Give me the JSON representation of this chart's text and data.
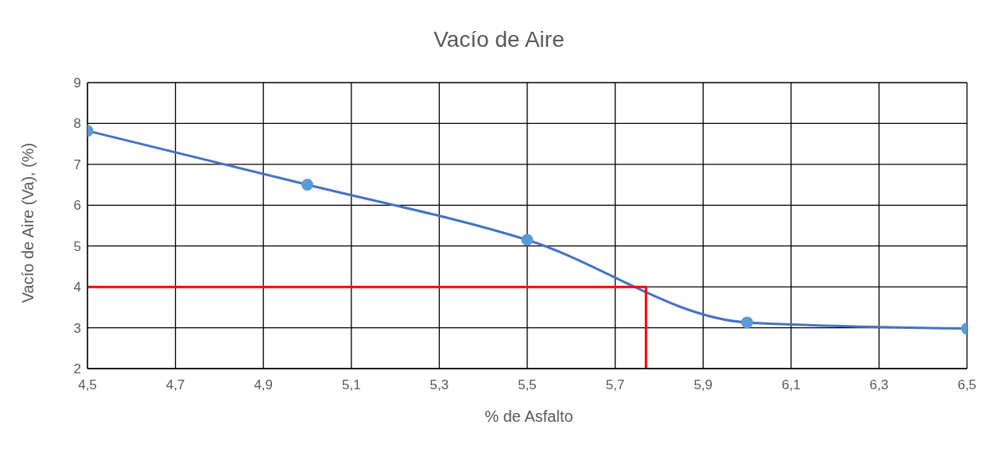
{
  "chart_data": {
    "type": "line",
    "title": "Vacío de Aire",
    "xlabel": "% de Asfalto",
    "ylabel": "Vacío de Aire (Va), (%)",
    "xlim": [
      4.5,
      6.5
    ],
    "xticks": [
      {
        "value": 4.5,
        "label": "4,5"
      },
      {
        "value": 4.7,
        "label": "4,7"
      },
      {
        "value": 4.9,
        "label": "4,9"
      },
      {
        "value": 5.1,
        "label": "5,1"
      },
      {
        "value": 5.3,
        "label": "5,3"
      },
      {
        "value": 5.5,
        "label": "5,5"
      },
      {
        "value": 5.7,
        "label": "5,7"
      },
      {
        "value": 5.9,
        "label": "5,9"
      },
      {
        "value": 6.1,
        "label": "6,1"
      },
      {
        "value": 6.3,
        "label": "6,3"
      },
      {
        "value": 6.5,
        "label": "6,5"
      }
    ],
    "ylim": [
      2,
      9
    ],
    "yticks": [
      2,
      3,
      4,
      5,
      6,
      7,
      8,
      9
    ],
    "grid": true,
    "marker": "circle",
    "line_style": "solid",
    "series": [
      {
        "color": "#4472c4",
        "x": [
          4.5,
          5.0,
          5.5,
          6.0,
          6.5
        ],
        "values": [
          7.82,
          6.5,
          5.15,
          3.13,
          2.98
        ]
      },
      {
        "color": "#ff0000",
        "marker": "none",
        "x": [
          4.5,
          5.77,
          5.77
        ],
        "values": [
          4,
          4,
          2
        ]
      }
    ]
  }
}
